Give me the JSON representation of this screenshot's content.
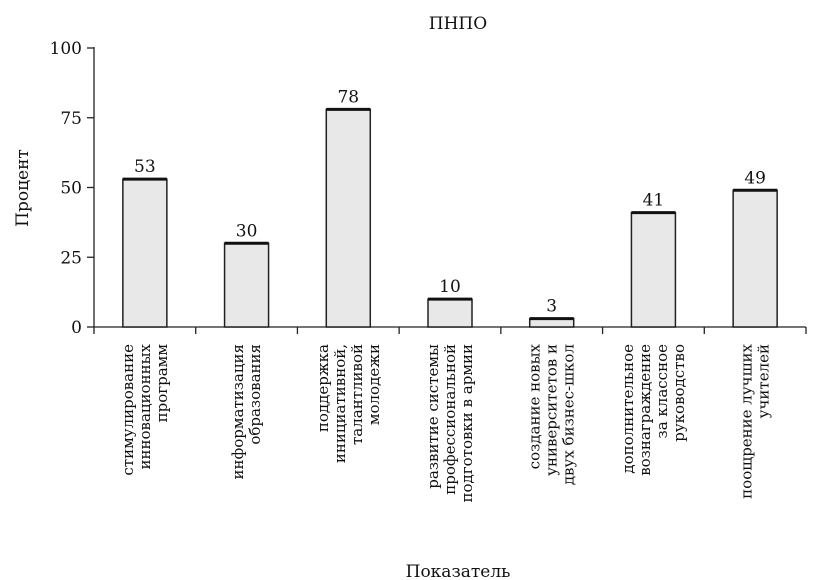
{
  "chart_data": {
    "type": "bar",
    "title": "ПНПО",
    "xlabel": "Показатель",
    "ylabel": "Процент",
    "ylim": [
      0,
      100
    ],
    "yticks": [
      0,
      25,
      50,
      75,
      100
    ],
    "categories": [
      [
        "стимулирование",
        "инновационных",
        "программ"
      ],
      [
        "информатизация",
        "образования"
      ],
      [
        "поддержка",
        "инициативной,",
        "талантливой",
        "молодежи"
      ],
      [
        "развитие системы",
        "профессиональной",
        "подготовки в армии"
      ],
      [
        "создание новых",
        "университетов и",
        "двух бизнес-школ"
      ],
      [
        "дополнительное",
        "вознаграждение",
        "за классное",
        "руководство"
      ],
      [
        "поощрение лучших",
        "учителей"
      ]
    ],
    "values": [
      53,
      30,
      78,
      10,
      3,
      41,
      49
    ],
    "grid": false,
    "legend": "none"
  }
}
